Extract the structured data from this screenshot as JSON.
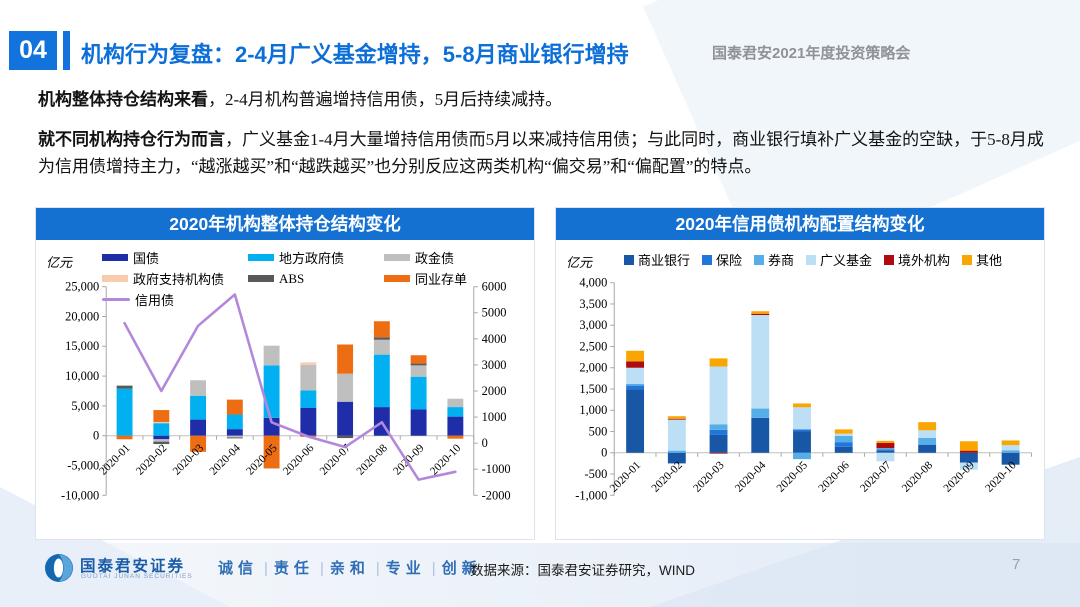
{
  "header": {
    "number": "04",
    "title": "机构行为复盘：2-4月广义基金增持，5-8月商业银行增持",
    "conference": "国泰君安2021年度投资策略会"
  },
  "paragraphs": [
    {
      "lead": "机构整体持仓结构来看",
      "text": "，2-4月机构普遍增持信用债，5月后持续减持。"
    },
    {
      "lead": "就不同机构持仓行为而言",
      "text": "，广义基金1-4月大量增持信用债而5月以来减持信用债；与此同时，商业银行填补广义基金的空缺，于5-8月成为信用债增持主力，“越涨越买”和“越跌越买”也分别反应这两类机构“偏交易”和“偏配置”的特点。"
    }
  ],
  "chart_data": [
    {
      "type": "bar",
      "title": "2020年机构整体持仓结构变化",
      "unit_label": "亿元",
      "legend_position": "top",
      "grid": false,
      "categories": [
        "2020-01",
        "2020-02",
        "2020-03",
        "2020-04",
        "2020-05",
        "2020-06",
        "2020-07",
        "2020-08",
        "2020-09",
        "2020-10"
      ],
      "bar_series": [
        {
          "name": "国债",
          "color": "#1F2DA8",
          "values": [
            0,
            -600,
            2700,
            1100,
            3000,
            4700,
            5700,
            4800,
            4400,
            3200
          ]
        },
        {
          "name": "地方政府债",
          "color": "#00B0F0",
          "values": [
            7900,
            2100,
            4000,
            2450,
            8800,
            2900,
            0,
            8800,
            5500,
            1600
          ]
        },
        {
          "name": "政金债",
          "color": "#BFBFBF",
          "values": [
            0,
            -400,
            2600,
            -300,
            3300,
            4300,
            4700,
            2500,
            1900,
            1400
          ]
        },
        {
          "name": "政府支持机构债",
          "color": "#F8CBAD",
          "values": [
            0,
            200,
            0,
            0,
            0,
            400,
            0,
            0,
            0,
            0
          ]
        },
        {
          "name": "ABS",
          "color": "#595959",
          "values": [
            500,
            -400,
            0,
            -150,
            0,
            0,
            -400,
            400,
            300,
            0
          ]
        },
        {
          "name": "同业存单",
          "color": "#ED6D13",
          "values": [
            -600,
            2000,
            -2700,
            2500,
            -5500,
            -200,
            4900,
            2700,
            1400,
            -500
          ]
        }
      ],
      "line_series": {
        "name": "信用债",
        "color": "#B388DC",
        "axis": "right",
        "values": [
          4600,
          2000,
          4500,
          5700,
          800,
          250,
          -150,
          800,
          -1400,
          -1100
        ]
      },
      "left_axis": {
        "min": -10000,
        "max": 25000,
        "step": 5000,
        "comma": true
      },
      "right_axis": {
        "min": -2000,
        "max": 6000,
        "step": 1000,
        "comma": false
      }
    },
    {
      "type": "bar",
      "title": "2020年信用债机构配置结构变化",
      "unit_label": "亿元",
      "legend_position": "top",
      "grid": false,
      "categories": [
        "2020-01",
        "2020-02",
        "2020-03",
        "2020-04",
        "2020-05",
        "2020-06",
        "2020-07",
        "2020-08",
        "2020-09",
        "2020-10"
      ],
      "bar_series": [
        {
          "name": "商业银行",
          "color": "#1857A5",
          "values": [
            1490,
            -250,
            420,
            820,
            500,
            140,
            50,
            190,
            -230,
            -280
          ]
        },
        {
          "name": "保险",
          "color": "#2176D9",
          "values": [
            90,
            0,
            120,
            0,
            50,
            110,
            30,
            0,
            0,
            0
          ]
        },
        {
          "name": "券商",
          "color": "#56AEE8",
          "values": [
            40,
            50,
            130,
            220,
            -150,
            150,
            30,
            160,
            0,
            60
          ]
        },
        {
          "name": "广义基金",
          "color": "#BDDFF5",
          "values": [
            380,
            730,
            1360,
            2200,
            520,
            50,
            -200,
            180,
            -170,
            120
          ]
        },
        {
          "name": "境外机构",
          "color": "#AE0B0E",
          "values": [
            150,
            20,
            -20,
            30,
            0,
            0,
            120,
            0,
            50,
            0
          ]
        },
        {
          "name": "其他",
          "color": "#F9A602",
          "values": [
            250,
            60,
            190,
            60,
            90,
            100,
            50,
            190,
            220,
            110
          ]
        }
      ],
      "left_axis": {
        "min": -1000,
        "max": 4000,
        "step": 500,
        "comma": true
      }
    }
  ],
  "footer": {
    "logo_name": "国泰君安证券",
    "logo_sub": "GUOTAI JUNAN SECURITIES",
    "motto_words": [
      "诚信",
      "责任",
      "亲和",
      "专业",
      "创新"
    ],
    "source": "数据来源：国泰君安证券研究，WIND",
    "page": "7"
  },
  "colors": {
    "header_blue": "#1173DB",
    "title_blue": "#0C6FD8",
    "banner_blue": "#1470D1",
    "conference_gray": "#8F9398"
  }
}
